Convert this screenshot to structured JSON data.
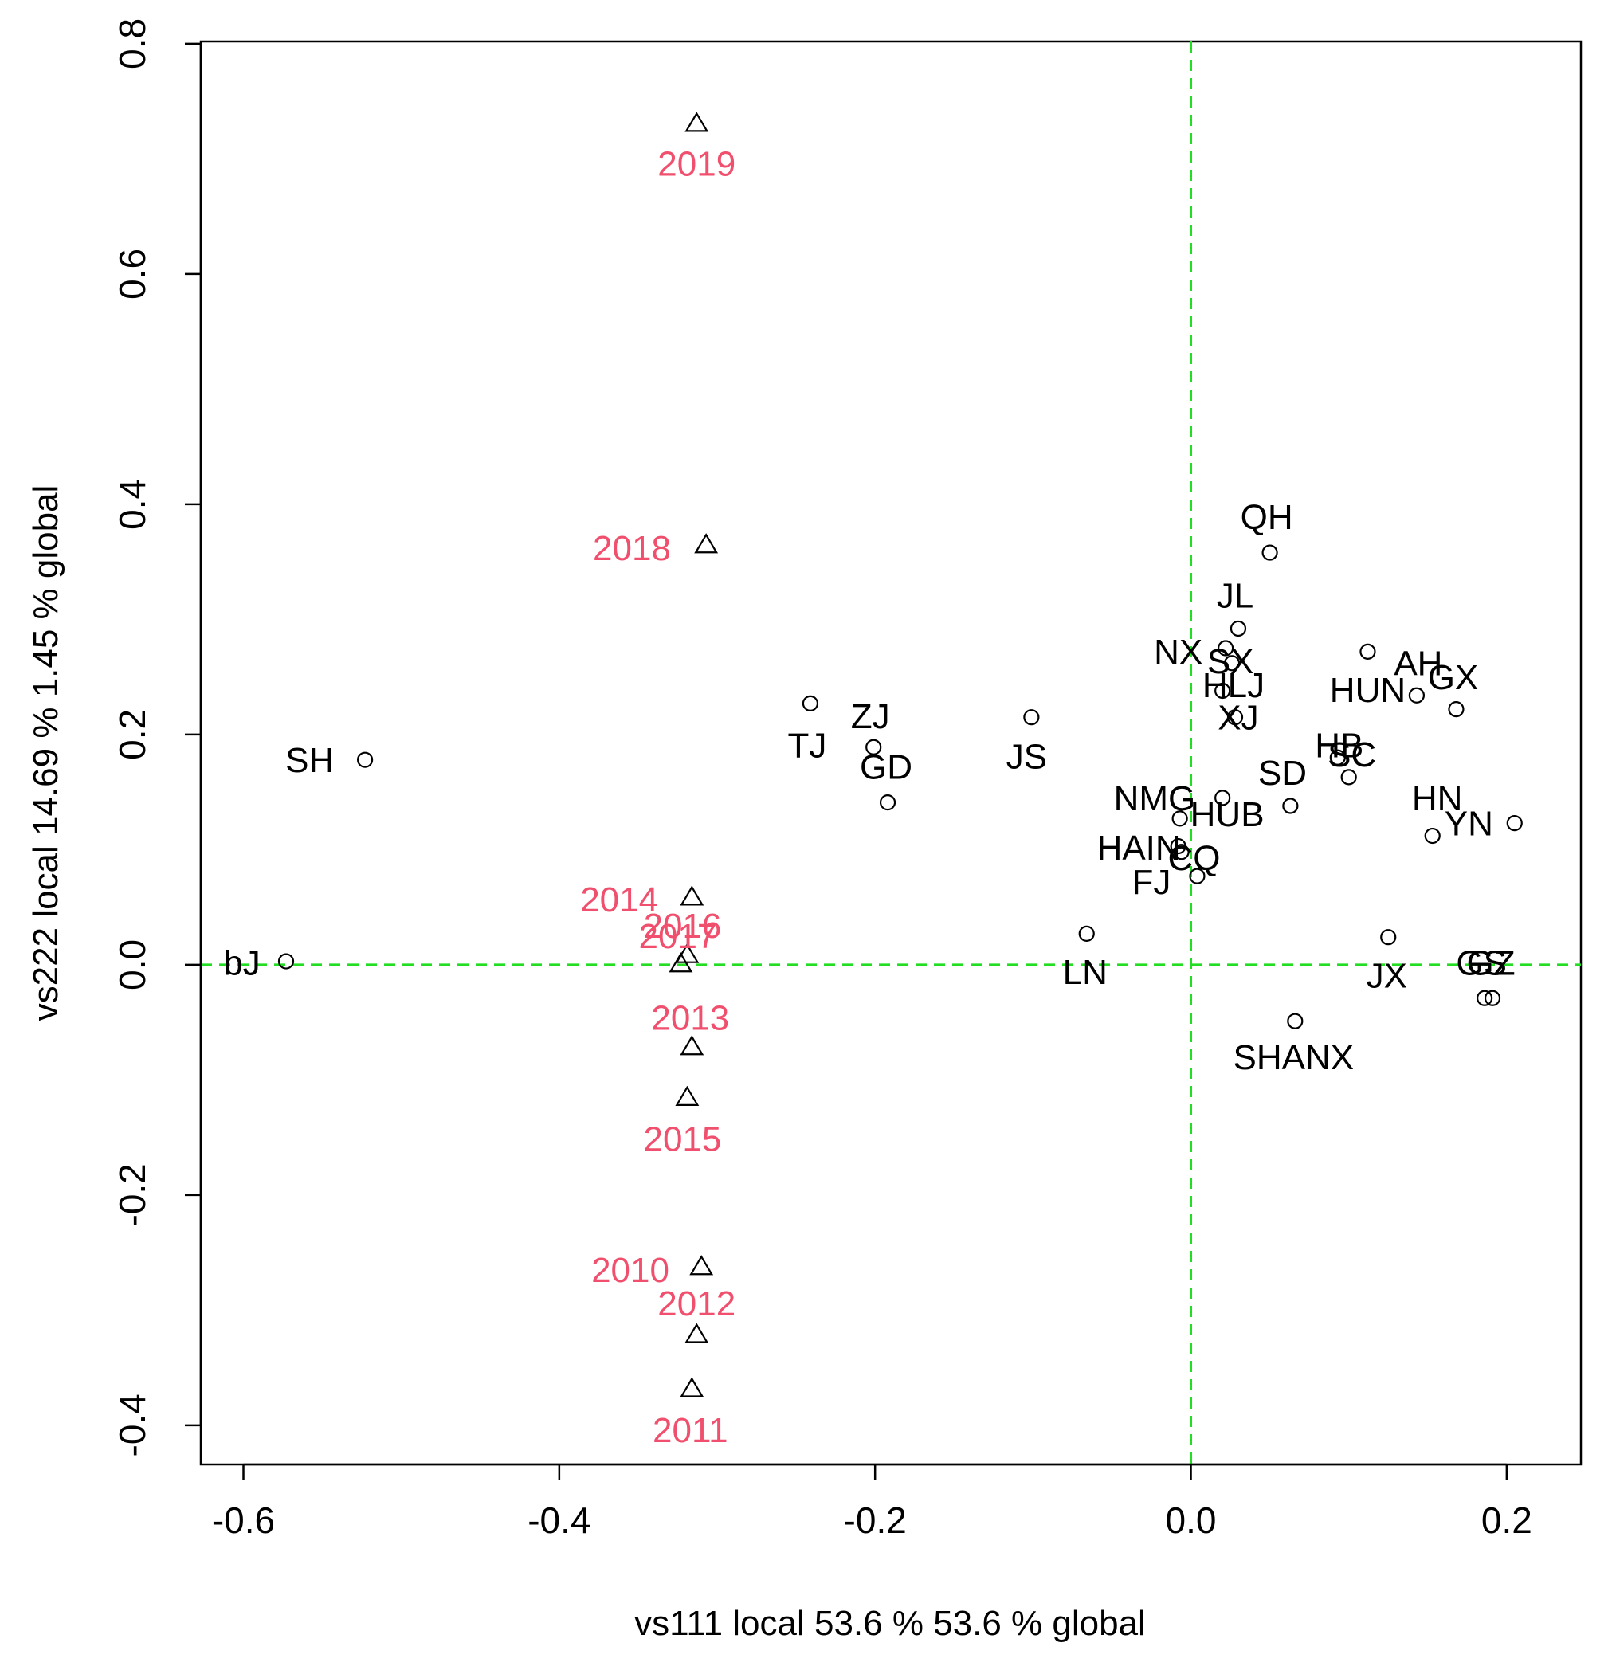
{
  "chart_data": {
    "type": "scatter",
    "title": "",
    "xlabel": "vs111  local 53.6 %  53.6 % global",
    "ylabel": "vs222  local 14.69 %  1.45 % global",
    "xlim": [
      -0.627,
      0.247
    ],
    "ylim": [
      -0.434,
      0.802
    ],
    "xticks": [
      "-0.6",
      "-0.4",
      "-0.2",
      "0.0",
      "0.2"
    ],
    "yticks": [
      "-0.4",
      "-0.2",
      "0.0",
      "0.2",
      "0.4",
      "0.6",
      "0.8"
    ],
    "xtick_values": [
      -0.6,
      -0.4,
      -0.2,
      0.0,
      0.2
    ],
    "ytick_values": [
      -0.4,
      -0.2,
      0.0,
      0.2,
      0.4,
      0.6,
      0.8
    ],
    "reference_lines": {
      "x": 0,
      "y": 0
    },
    "colors": {
      "reference": "#22dd22",
      "year_label": "#f0506e",
      "point": "#000000",
      "label": "#000000"
    },
    "series": [
      {
        "name": "provinces",
        "marker": "circle",
        "points": [
          {
            "label": "bJ",
            "x": -0.573,
            "y": 0.003,
            "lx": -0.601,
            "ly": 0.002
          },
          {
            "label": "SH",
            "x": -0.523,
            "y": 0.178,
            "lx": -0.558,
            "ly": 0.178
          },
          {
            "label": "TJ",
            "x": -0.241,
            "y": 0.227,
            "lx": -0.243,
            "ly": 0.191
          },
          {
            "label": "ZJ",
            "x": -0.201,
            "y": 0.189,
            "lx": -0.203,
            "ly": 0.216
          },
          {
            "label": "GD",
            "x": -0.192,
            "y": 0.141,
            "lx": -0.193,
            "ly": 0.172
          },
          {
            "label": "JS",
            "x": -0.101,
            "y": 0.215,
            "lx": -0.104,
            "ly": 0.181
          },
          {
            "label": "LN",
            "x": -0.066,
            "y": 0.027,
            "lx": -0.067,
            "ly": -0.006
          },
          {
            "label": "QH",
            "x": 0.05,
            "y": 0.358,
            "lx": 0.048,
            "ly": 0.389
          },
          {
            "label": "JL",
            "x": 0.03,
            "y": 0.292,
            "lx": 0.028,
            "ly": 0.321
          },
          {
            "label": "NX",
            "x": 0.022,
            "y": 0.275,
            "lx": -0.008,
            "ly": 0.272
          },
          {
            "label": "SX",
            "x": 0.026,
            "y": 0.262,
            "lx": 0.025,
            "ly": 0.264
          },
          {
            "label": "HLJ",
            "x": 0.02,
            "y": 0.238,
            "lx": 0.027,
            "ly": 0.243
          },
          {
            "label": "XJ",
            "x": 0.028,
            "y": 0.215,
            "lx": 0.03,
            "ly": 0.215
          },
          {
            "label": "AH",
            "x": 0.112,
            "y": 0.272,
            "lx": 0.144,
            "ly": 0.262
          },
          {
            "label": "GX",
            "x": 0.168,
            "y": 0.222,
            "lx": 0.166,
            "ly": 0.25
          },
          {
            "label": "HUN",
            "x": 0.143,
            "y": 0.234,
            "lx": 0.112,
            "ly": 0.239
          },
          {
            "label": "HB",
            "x": 0.093,
            "y": 0.18,
            "lx": 0.094,
            "ly": 0.191
          },
          {
            "label": "SC",
            "x": 0.1,
            "y": 0.163,
            "lx": 0.102,
            "ly": 0.183
          },
          {
            "label": "SD",
            "x": 0.063,
            "y": 0.138,
            "lx": 0.058,
            "ly": 0.167
          },
          {
            "label": "NMG",
            "x": -0.007,
            "y": 0.127,
            "lx": -0.023,
            "ly": 0.145
          },
          {
            "label": "HUB",
            "x": 0.02,
            "y": 0.145,
            "lx": 0.023,
            "ly": 0.131
          },
          {
            "label": "HN",
            "x": 0.153,
            "y": 0.112,
            "lx": 0.156,
            "ly": 0.145
          },
          {
            "label": "YN",
            "x": 0.205,
            "y": 0.123,
            "lx": 0.176,
            "ly": 0.123
          },
          {
            "label": "HAIN",
            "x": -0.008,
            "y": 0.103,
            "lx": -0.033,
            "ly": 0.102
          },
          {
            "label": "CQ",
            "x": 0.004,
            "y": 0.077,
            "lx": 0.002,
            "ly": 0.093
          },
          {
            "label": "FJ",
            "x": -0.006,
            "y": 0.098,
            "lx": -0.025,
            "ly": 0.072
          },
          {
            "label": "JX",
            "x": 0.125,
            "y": 0.024,
            "lx": 0.124,
            "ly": -0.009
          },
          {
            "label": "GS",
            "x": 0.186,
            "y": -0.029,
            "lx": 0.184,
            "ly": 0.002
          },
          {
            "label": "GZ",
            "x": 0.191,
            "y": -0.029,
            "lx": 0.19,
            "ly": 0.002
          },
          {
            "label": "SHANX",
            "x": 0.066,
            "y": -0.049,
            "lx": 0.065,
            "ly": -0.08
          }
        ]
      },
      {
        "name": "years",
        "marker": "triangle",
        "points": [
          {
            "label": "2019",
            "x": -0.313,
            "y": 0.73,
            "lx": -0.313,
            "ly": 0.696
          },
          {
            "label": "2018",
            "x": -0.307,
            "y": 0.364,
            "lx": -0.354,
            "ly": 0.362
          },
          {
            "label": "2014",
            "x": -0.316,
            "y": 0.058,
            "lx": -0.362,
            "ly": 0.057
          },
          {
            "label": "2016",
            "x": -0.319,
            "y": 0.008,
            "lx": -0.322,
            "ly": 0.034
          },
          {
            "label": "2017",
            "x": -0.323,
            "y": 0.0,
            "lx": -0.325,
            "ly": 0.025
          },
          {
            "label": "2013",
            "x": -0.316,
            "y": -0.072,
            "lx": -0.317,
            "ly": -0.046
          },
          {
            "label": "2015",
            "x": -0.319,
            "y": -0.116,
            "lx": -0.322,
            "ly": -0.151
          },
          {
            "label": "2010",
            "x": -0.31,
            "y": -0.263,
            "lx": -0.355,
            "ly": -0.265
          },
          {
            "label": "2012",
            "x": -0.313,
            "y": -0.322,
            "lx": -0.313,
            "ly": -0.294
          },
          {
            "label": "2011",
            "x": -0.316,
            "y": -0.369,
            "lx": -0.317,
            "ly": -0.404
          }
        ]
      }
    ]
  }
}
